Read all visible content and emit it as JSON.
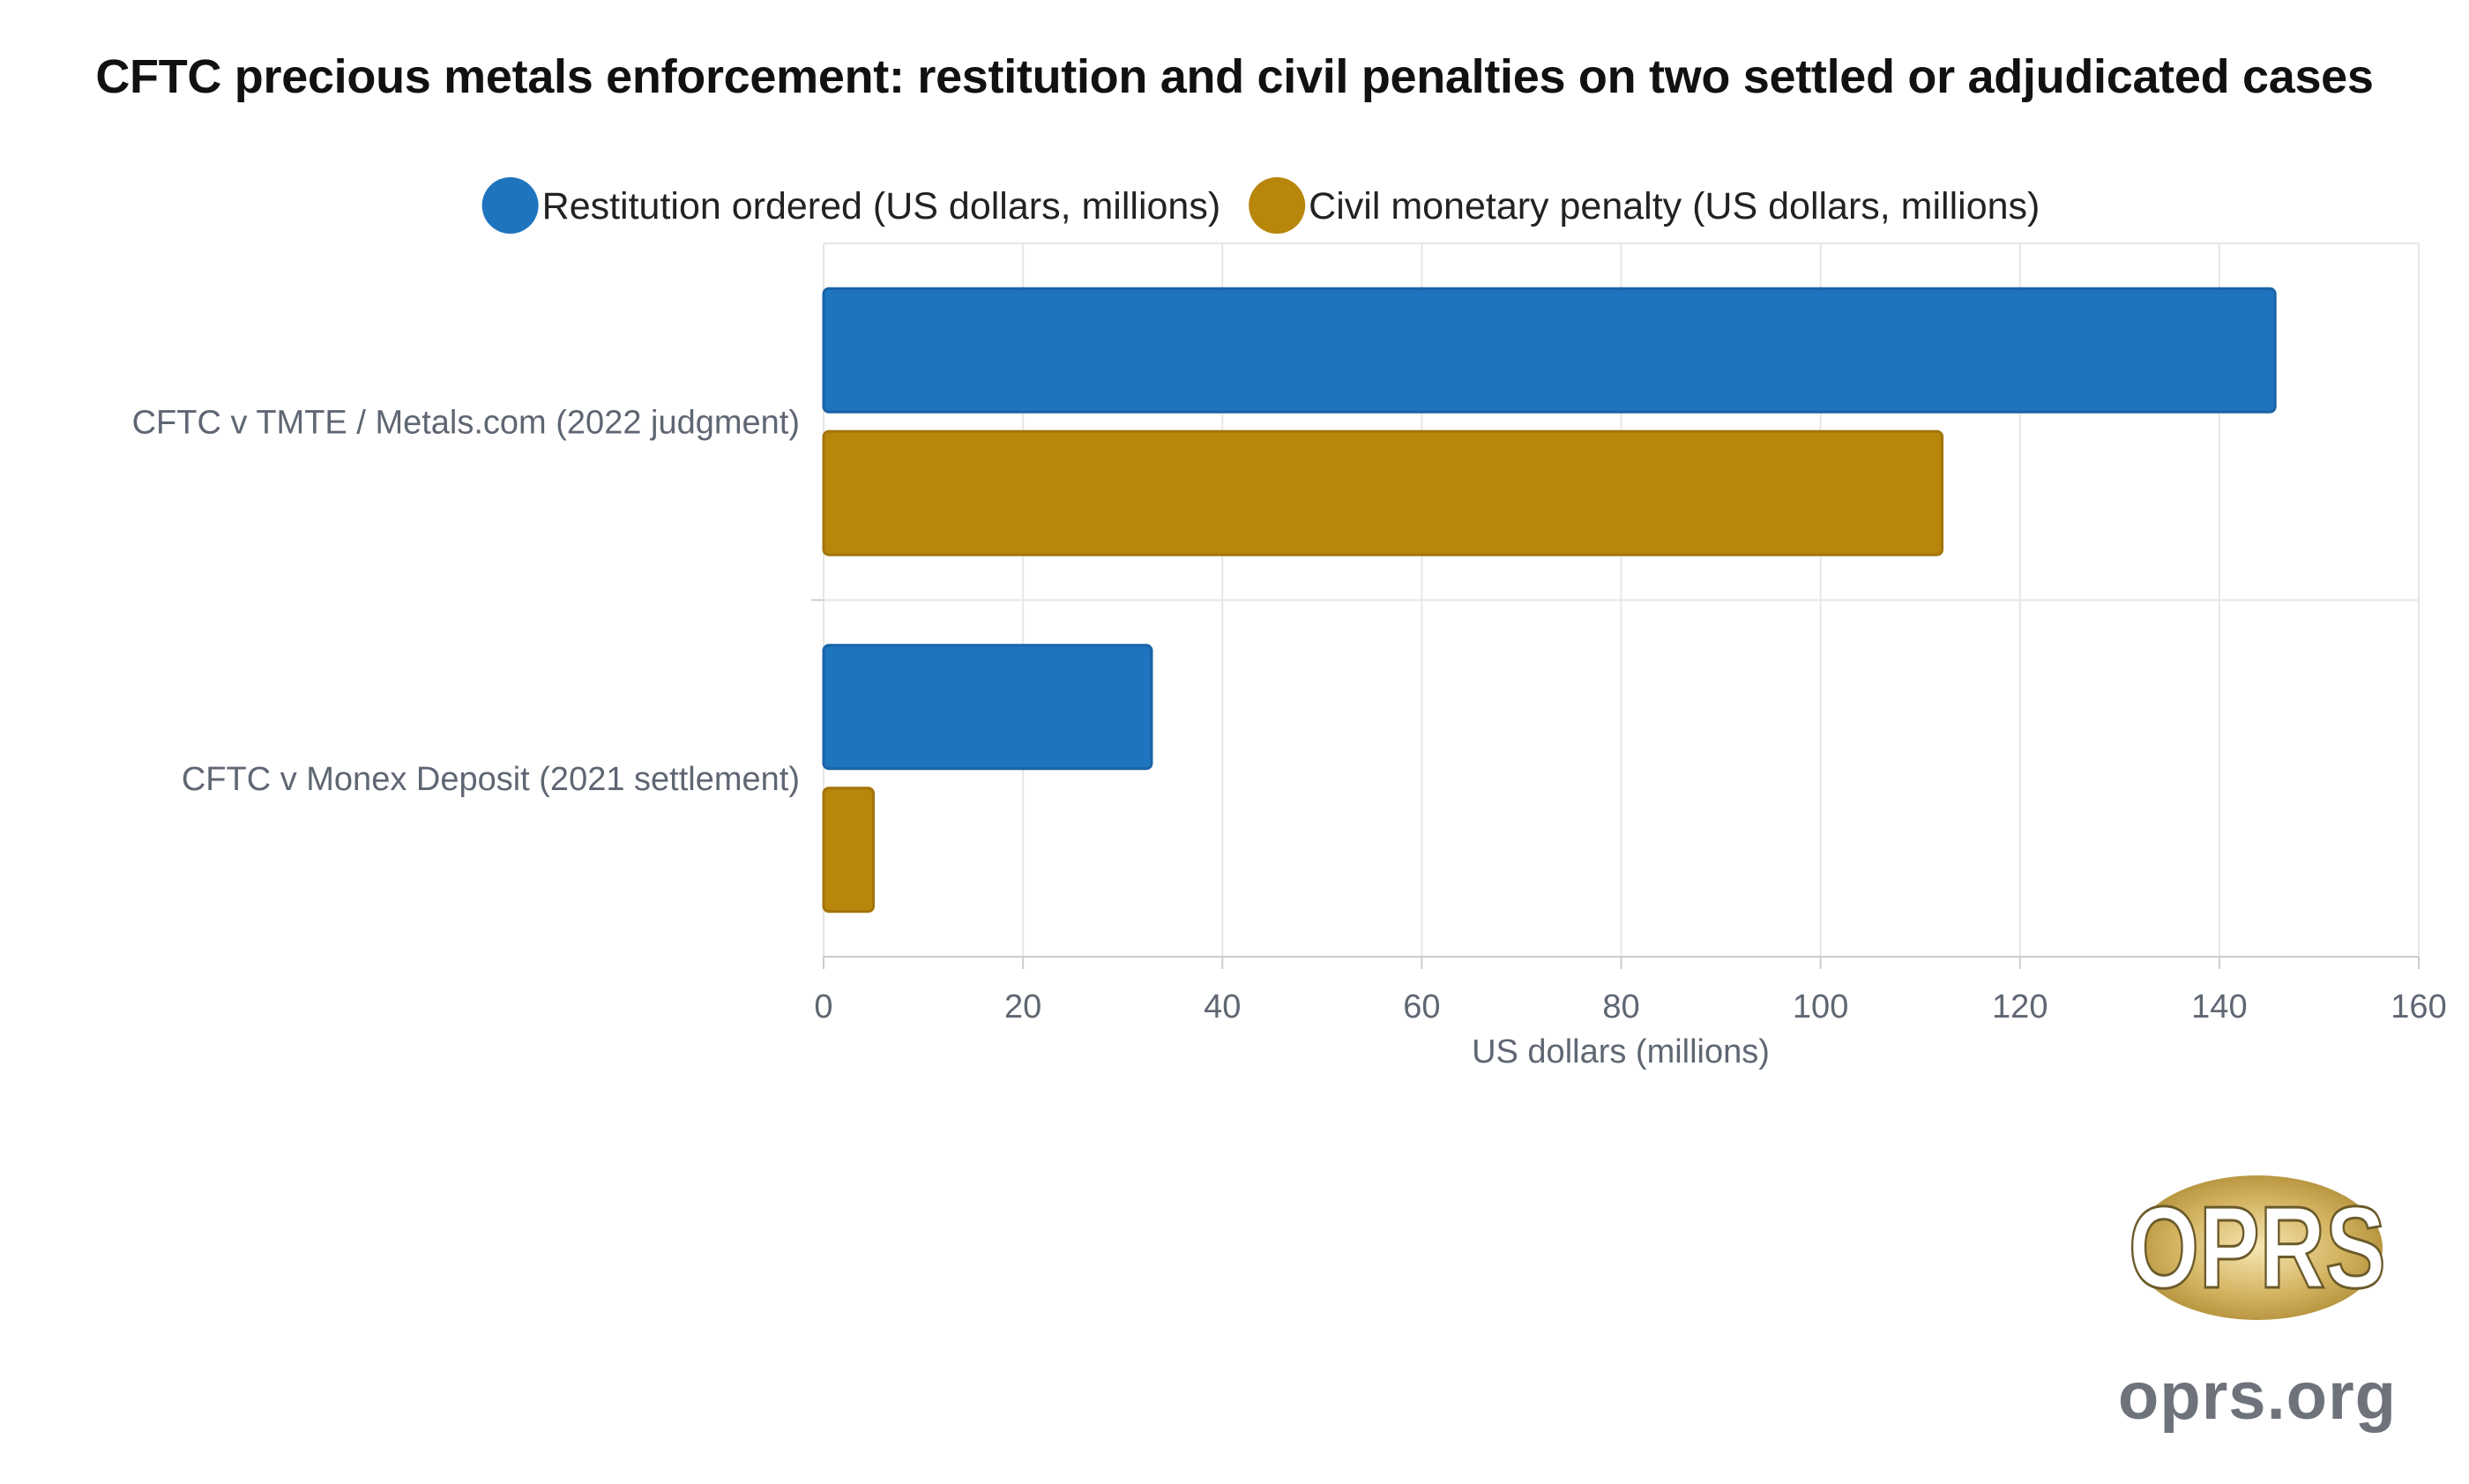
{
  "chart_data": {
    "type": "bar",
    "orientation": "horizontal",
    "title": "CFTC precious metals enforcement: restitution and civil penalties on two settled or adjudicated cases",
    "categories": [
      "CFTC v TMTE / Metals.com (2022 judgment)",
      "CFTC v Monex Deposit (2021 settlement)"
    ],
    "series": [
      {
        "name": "Restitution ordered (US dollars, millions)",
        "color": "#1f74be",
        "values": [
          145.6,
          32.9
        ]
      },
      {
        "name": "Civil monetary penalty (US dollars, millions)",
        "color": "#b8860b",
        "values": [
          112.2,
          5.0
        ]
      }
    ],
    "xlabel": "US dollars (millions)",
    "ylabel": "",
    "xlim": [
      0,
      160
    ],
    "xticks": [
      "0",
      "20",
      "40",
      "60",
      "80",
      "100",
      "120",
      "140",
      "160"
    ],
    "grid": true,
    "legend_position": "top"
  },
  "branding": {
    "logo_text": "OPRS",
    "site": "oprs.org"
  }
}
